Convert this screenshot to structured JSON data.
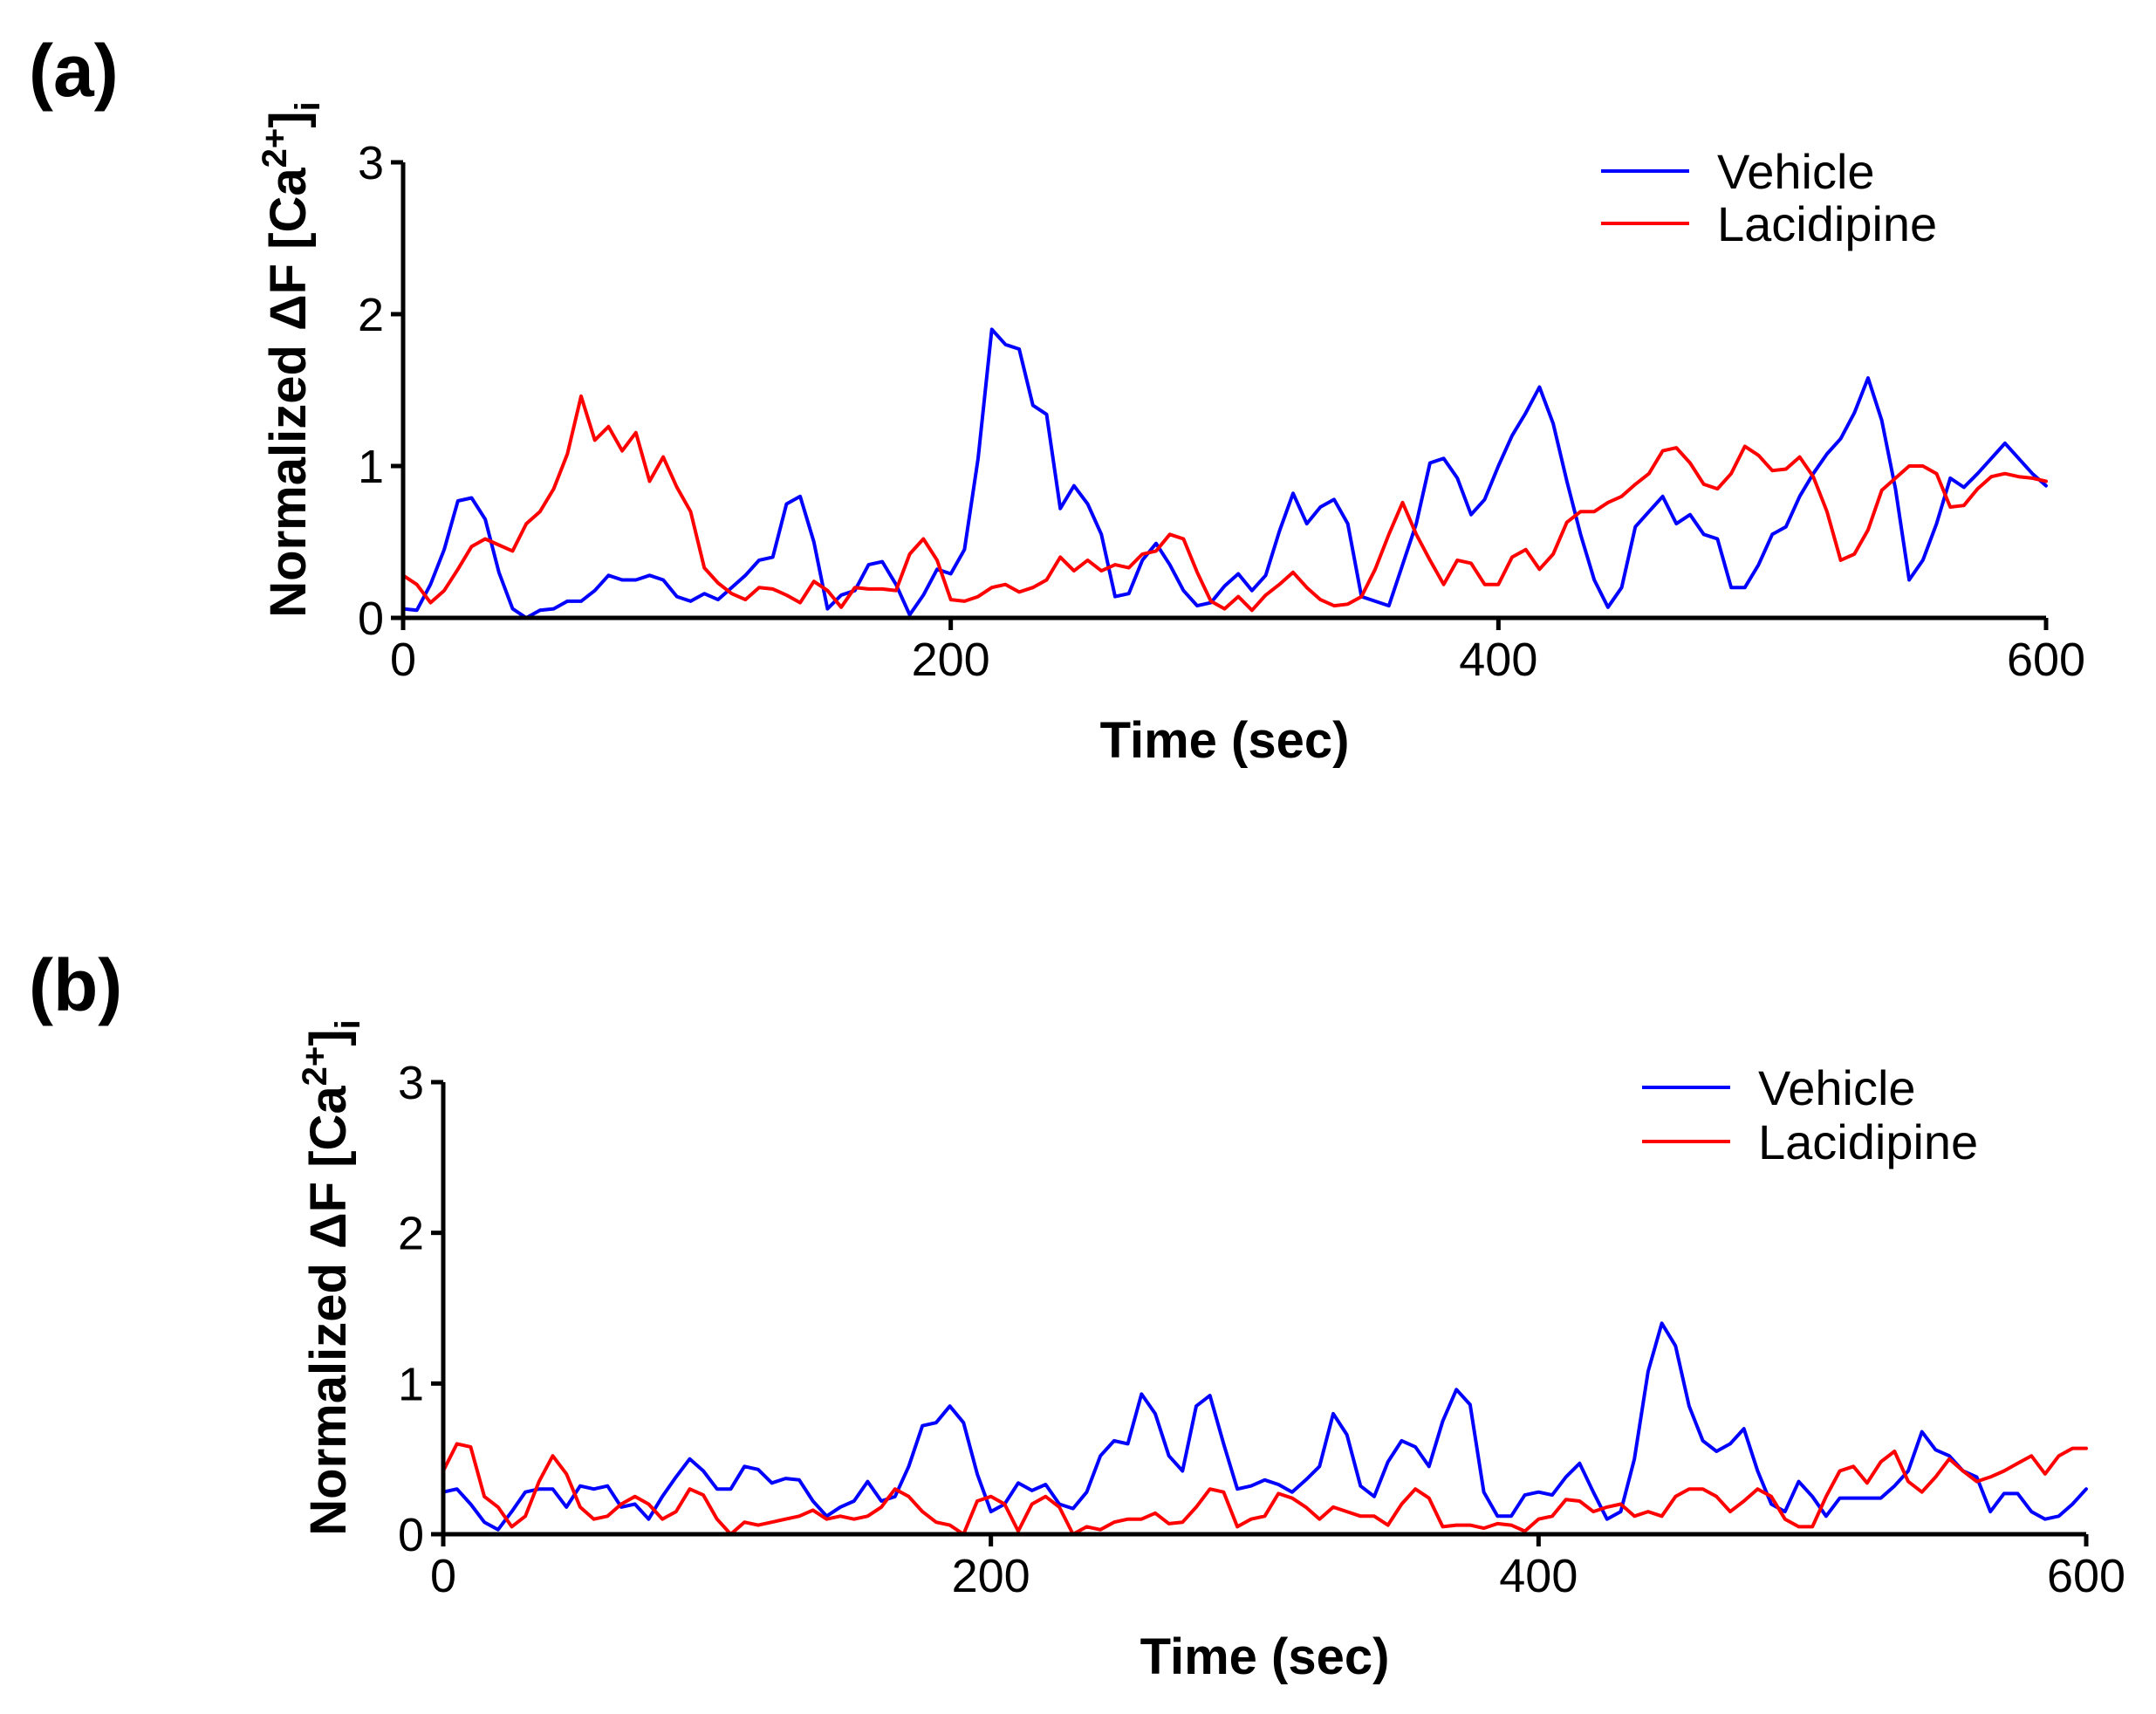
{
  "chart_data": [
    {
      "type": "line",
      "panel_label": "(a)",
      "xlabel": "Time (sec)",
      "ylabel": "Normalized ΔF [Ca2+]i",
      "ylabel_parts": {
        "main": "Normalized ΔF [Ca",
        "sup": "2+",
        "close": "]",
        "sub": "i"
      },
      "xlim": [
        0,
        600
      ],
      "ylim": [
        0,
        3
      ],
      "xticks": [
        0,
        200,
        400,
        600
      ],
      "yticks": [
        0,
        1,
        2,
        3
      ],
      "legend_position": "top-right",
      "grid": false,
      "series": [
        {
          "name": "Vehicle",
          "color": "#0000ff",
          "x": [
            0,
            5,
            10,
            15,
            20,
            25,
            30,
            35,
            40,
            45,
            50,
            55,
            60,
            65,
            70,
            75,
            80,
            85,
            90,
            95,
            100,
            105,
            110,
            115,
            120,
            125,
            130,
            135,
            140,
            145,
            150,
            155,
            160,
            165,
            170,
            175,
            180,
            185,
            190,
            195,
            200,
            205,
            210,
            215,
            220,
            225,
            230,
            235,
            240,
            245,
            250,
            255,
            260,
            265,
            270,
            275,
            280,
            285,
            290,
            295,
            300,
            305,
            310,
            315,
            320,
            325,
            330,
            335,
            340,
            345,
            350,
            355,
            360,
            365,
            370,
            375,
            380,
            385,
            390,
            395,
            400,
            405,
            410,
            415,
            420,
            425,
            430,
            435,
            440,
            445,
            450,
            455,
            460,
            465,
            470,
            475,
            480,
            485,
            490,
            495,
            500,
            505,
            510,
            515,
            520,
            525,
            530,
            535,
            540,
            545,
            550,
            555,
            560,
            565,
            570,
            575,
            580,
            585,
            590,
            595,
            600
          ],
          "values": [
            0.06,
            0.05,
            0.22,
            0.45,
            0.77,
            0.79,
            0.65,
            0.3,
            0.06,
            0.0,
            0.05,
            0.06,
            0.11,
            0.11,
            0.18,
            0.28,
            0.25,
            0.25,
            0.28,
            0.25,
            0.14,
            0.11,
            0.16,
            0.12,
            0.2,
            0.28,
            0.38,
            0.4,
            0.75,
            0.8,
            0.5,
            0.06,
            0.15,
            0.18,
            0.35,
            0.37,
            0.22,
            0.02,
            0.15,
            0.32,
            0.29,
            0.45,
            1.05,
            1.9,
            1.8,
            1.77,
            1.4,
            1.34,
            0.72,
            0.87,
            0.75,
            0.55,
            0.14,
            0.16,
            0.38,
            0.49,
            0.35,
            0.18,
            0.08,
            0.1,
            0.21,
            0.29,
            0.18,
            0.28,
            0.57,
            0.82,
            0.62,
            0.73,
            0.78,
            0.62,
            0.14,
            0.11,
            0.08,
            0.35,
            0.62,
            1.02,
            1.05,
            0.92,
            0.68,
            0.78,
            1.0,
            1.2,
            1.35,
            1.52,
            1.28,
            0.9,
            0.55,
            0.25,
            0.07,
            0.2,
            0.6,
            0.7,
            0.8,
            0.62,
            0.68,
            0.55,
            0.52,
            0.2,
            0.2,
            0.35,
            0.55,
            0.6,
            0.8,
            0.95,
            1.08,
            1.18,
            1.35,
            1.58,
            1.3,
            0.85,
            0.25,
            0.38,
            0.62,
            0.92,
            0.86,
            0.95,
            1.05,
            1.15,
            1.05,
            0.95,
            0.87
          ]
        },
        {
          "name": "Lacidipine",
          "color": "#ff0000",
          "x": [
            0,
            5,
            10,
            15,
            20,
            25,
            30,
            35,
            40,
            45,
            50,
            55,
            60,
            65,
            70,
            75,
            80,
            85,
            90,
            95,
            100,
            105,
            110,
            115,
            120,
            125,
            130,
            135,
            140,
            145,
            150,
            155,
            160,
            165,
            170,
            175,
            180,
            185,
            190,
            195,
            200,
            205,
            210,
            215,
            220,
            225,
            230,
            235,
            240,
            245,
            250,
            255,
            260,
            265,
            270,
            275,
            280,
            285,
            290,
            295,
            300,
            305,
            310,
            315,
            320,
            325,
            330,
            335,
            340,
            345,
            350,
            355,
            360,
            365,
            370,
            375,
            380,
            385,
            390,
            395,
            400,
            405,
            410,
            415,
            420,
            425,
            430,
            435,
            440,
            445,
            450,
            455,
            460,
            465,
            470,
            475,
            480,
            485,
            490,
            495,
            500,
            505,
            510,
            515,
            520,
            525,
            530,
            535,
            540,
            545,
            550,
            555,
            560,
            565,
            570,
            575,
            580,
            585,
            590,
            595,
            600
          ],
          "values": [
            0.28,
            0.22,
            0.1,
            0.18,
            0.32,
            0.47,
            0.52,
            0.48,
            0.44,
            0.62,
            0.7,
            0.85,
            1.08,
            1.46,
            1.17,
            1.26,
            1.1,
            1.22,
            0.9,
            1.06,
            0.86,
            0.7,
            0.33,
            0.23,
            0.16,
            0.12,
            0.2,
            0.19,
            0.15,
            0.1,
            0.24,
            0.18,
            0.07,
            0.2,
            0.19,
            0.19,
            0.18,
            0.42,
            0.52,
            0.38,
            0.12,
            0.11,
            0.14,
            0.2,
            0.22,
            0.17,
            0.2,
            0.25,
            0.4,
            0.31,
            0.38,
            0.31,
            0.35,
            0.33,
            0.42,
            0.44,
            0.55,
            0.52,
            0.3,
            0.11,
            0.06,
            0.14,
            0.05,
            0.15,
            0.22,
            0.3,
            0.2,
            0.12,
            0.08,
            0.09,
            0.14,
            0.32,
            0.55,
            0.76,
            0.55,
            0.38,
            0.22,
            0.38,
            0.36,
            0.22,
            0.22,
            0.4,
            0.45,
            0.32,
            0.42,
            0.63,
            0.7,
            0.7,
            0.76,
            0.8,
            0.88,
            0.95,
            1.1,
            1.12,
            1.02,
            0.88,
            0.85,
            0.95,
            1.13,
            1.07,
            0.97,
            0.98,
            1.06,
            0.93,
            0.7,
            0.38,
            0.42,
            0.58,
            0.84,
            0.92,
            1.0,
            1.0,
            0.95,
            0.73,
            0.74,
            0.85,
            0.93,
            0.95,
            0.93,
            0.92,
            0.9
          ]
        }
      ]
    },
    {
      "type": "line",
      "panel_label": "(b)",
      "xlabel": "Time (sec)",
      "ylabel": "Normalized ΔF [Ca2+]i",
      "ylabel_parts": {
        "main": "Normalized ΔF [Ca",
        "sup": "2+",
        "close": "]",
        "sub": "i"
      },
      "xlim": [
        0,
        600
      ],
      "ylim": [
        0,
        3
      ],
      "xticks": [
        0,
        200,
        400,
        600
      ],
      "yticks": [
        0,
        1,
        2,
        3
      ],
      "legend_position": "top-right",
      "grid": false,
      "series": [
        {
          "name": "Vehicle",
          "color": "#0000ff",
          "x": [
            0,
            5,
            10,
            15,
            20,
            25,
            30,
            35,
            40,
            45,
            50,
            55,
            60,
            65,
            70,
            75,
            80,
            85,
            90,
            95,
            100,
            105,
            110,
            115,
            120,
            125,
            130,
            135,
            140,
            145,
            150,
            155,
            160,
            165,
            170,
            175,
            180,
            185,
            190,
            195,
            200,
            205,
            210,
            215,
            220,
            225,
            230,
            235,
            240,
            245,
            250,
            255,
            260,
            265,
            270,
            275,
            280,
            285,
            290,
            295,
            300,
            305,
            310,
            315,
            320,
            325,
            330,
            335,
            340,
            345,
            350,
            355,
            360,
            365,
            370,
            375,
            380,
            385,
            390,
            395,
            400,
            405,
            410,
            415,
            420,
            425,
            430,
            435,
            440,
            445,
            450,
            455,
            460,
            465,
            470,
            475,
            480,
            485,
            490,
            495,
            500,
            505,
            510,
            515,
            520,
            525,
            530,
            535,
            540,
            545,
            550,
            555,
            560,
            565,
            570,
            575,
            580,
            585,
            590,
            595,
            600
          ],
          "values": [
            0.28,
            0.3,
            0.2,
            0.08,
            0.03,
            0.15,
            0.28,
            0.3,
            0.3,
            0.18,
            0.32,
            0.3,
            0.32,
            0.18,
            0.2,
            0.1,
            0.25,
            0.38,
            0.5,
            0.42,
            0.3,
            0.3,
            0.45,
            0.43,
            0.34,
            0.37,
            0.36,
            0.22,
            0.12,
            0.18,
            0.22,
            0.35,
            0.22,
            0.25,
            0.45,
            0.72,
            0.74,
            0.85,
            0.74,
            0.4,
            0.15,
            0.2,
            0.34,
            0.29,
            0.33,
            0.2,
            0.17,
            0.28,
            0.52,
            0.62,
            0.6,
            0.93,
            0.8,
            0.52,
            0.42,
            0.85,
            0.92,
            0.6,
            0.3,
            0.32,
            0.36,
            0.33,
            0.28,
            0.36,
            0.45,
            0.8,
            0.66,
            0.32,
            0.25,
            0.48,
            0.62,
            0.58,
            0.45,
            0.75,
            0.96,
            0.86,
            0.28,
            0.12,
            0.12,
            0.26,
            0.28,
            0.26,
            0.38,
            0.47,
            0.28,
            0.1,
            0.15,
            0.5,
            1.08,
            1.4,
            1.25,
            0.85,
            0.62,
            0.55,
            0.6,
            0.7,
            0.42,
            0.2,
            0.15,
            0.35,
            0.25,
            0.12,
            0.24,
            0.24,
            0.24,
            0.24,
            0.32,
            0.42,
            0.68,
            0.56,
            0.52,
            0.42,
            0.38,
            0.15,
            0.27,
            0.27,
            0.15,
            0.1,
            0.12,
            0.2,
            0.3
          ]
        },
        {
          "name": "Lacidipine",
          "color": "#ff0000",
          "x": [
            0,
            5,
            10,
            15,
            20,
            25,
            30,
            35,
            40,
            45,
            50,
            55,
            60,
            65,
            70,
            75,
            80,
            85,
            90,
            95,
            100,
            105,
            110,
            115,
            120,
            125,
            130,
            135,
            140,
            145,
            150,
            155,
            160,
            165,
            170,
            175,
            180,
            185,
            190,
            195,
            200,
            205,
            210,
            215,
            220,
            225,
            230,
            235,
            240,
            245,
            250,
            255,
            260,
            265,
            270,
            275,
            280,
            285,
            290,
            295,
            300,
            305,
            310,
            315,
            320,
            325,
            330,
            335,
            340,
            345,
            350,
            355,
            360,
            365,
            370,
            375,
            380,
            385,
            390,
            395,
            400,
            405,
            410,
            415,
            420,
            425,
            430,
            435,
            440,
            445,
            450,
            455,
            460,
            465,
            470,
            475,
            480,
            485,
            490,
            495,
            500,
            505,
            510,
            515,
            520,
            525,
            530,
            535,
            540,
            545,
            550,
            555,
            560,
            565,
            570,
            575,
            580,
            585,
            590,
            595,
            600
          ],
          "values": [
            0.42,
            0.6,
            0.58,
            0.25,
            0.18,
            0.05,
            0.12,
            0.35,
            0.52,
            0.4,
            0.18,
            0.1,
            0.12,
            0.2,
            0.25,
            0.2,
            0.1,
            0.15,
            0.3,
            0.26,
            0.1,
            0.0,
            0.08,
            0.06,
            0.08,
            0.1,
            0.12,
            0.16,
            0.1,
            0.12,
            0.1,
            0.12,
            0.18,
            0.3,
            0.25,
            0.15,
            0.08,
            0.06,
            0.0,
            0.22,
            0.25,
            0.2,
            0.02,
            0.2,
            0.25,
            0.18,
            0.0,
            0.05,
            0.03,
            0.08,
            0.1,
            0.1,
            0.14,
            0.07,
            0.08,
            0.18,
            0.3,
            0.28,
            0.05,
            0.1,
            0.12,
            0.27,
            0.24,
            0.18,
            0.1,
            0.18,
            0.15,
            0.12,
            0.12,
            0.06,
            0.2,
            0.3,
            0.24,
            0.05,
            0.06,
            0.06,
            0.04,
            0.07,
            0.06,
            0.02,
            0.1,
            0.12,
            0.23,
            0.22,
            0.15,
            0.18,
            0.2,
            0.12,
            0.15,
            0.12,
            0.25,
            0.3,
            0.3,
            0.25,
            0.15,
            0.22,
            0.3,
            0.25,
            0.1,
            0.05,
            0.05,
            0.25,
            0.42,
            0.45,
            0.34,
            0.48,
            0.55,
            0.35,
            0.28,
            0.38,
            0.5,
            0.42,
            0.35,
            0.38,
            0.42,
            0.47,
            0.52,
            0.4,
            0.52,
            0.57,
            0.57
          ]
        }
      ]
    }
  ]
}
